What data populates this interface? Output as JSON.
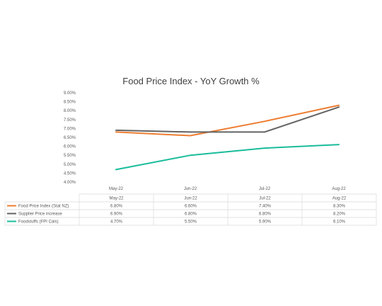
{
  "chart_data": {
    "type": "line",
    "title": "Food Price Index - YoY Growth %",
    "categories": [
      "May-22",
      "Jun-22",
      "Jul-22",
      "Aug-22"
    ],
    "ylim": [
      4.0,
      9.0
    ],
    "yticks": [
      "9.00%",
      "8.50%",
      "8.00%",
      "7.50%",
      "7.00%",
      "6.50%",
      "6.00%",
      "5.50%",
      "5.00%",
      "4.50%",
      "4.00%"
    ],
    "grid": false,
    "legend": "data-table",
    "series": [
      {
        "name": "Food Price Index (Stat NZ)",
        "values": [
          6.8,
          6.6,
          7.4,
          8.3
        ],
        "labels": [
          "6.80%",
          "6.60%",
          "7.40%",
          "8.30%"
        ],
        "color": "#ED7D31"
      },
      {
        "name": "Supplier Price increase",
        "values": [
          6.9,
          6.8,
          6.8,
          8.2
        ],
        "labels": [
          "6.90%",
          "6.80%",
          "6.80%",
          "8.20%"
        ],
        "color": "#636363"
      },
      {
        "name": "Foodstuffs (FPI Cals)",
        "values": [
          4.7,
          5.5,
          5.9,
          6.1
        ],
        "labels": [
          "4.70%",
          "5.50%",
          "5.90%",
          "6.10%"
        ],
        "color": "#1ABC9C"
      }
    ]
  }
}
